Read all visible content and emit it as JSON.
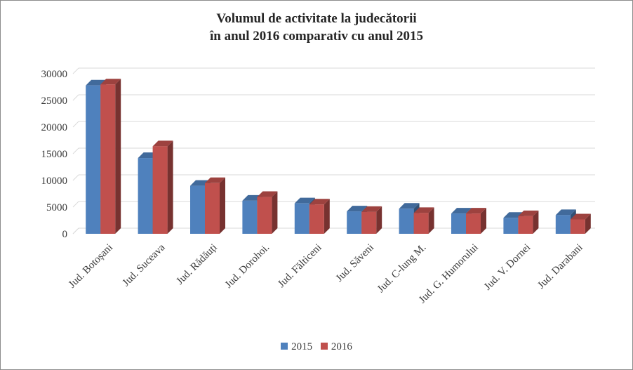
{
  "chart_data": {
    "type": "bar",
    "title_line1": "Volumul  de activitate la judecătorii",
    "title_line2": "în anul 2016 comparativ cu anul 2015",
    "categories": [
      "Jud. Botoșani",
      "Jud. Suceava",
      "Jud. Rădăuți",
      "Jud. Dorohoi.",
      "Jud. Fălticeni",
      "Jud. Săveni",
      "Jud. C-lung M.",
      "Jud. G. Humorului",
      "Jud. V. Dornei",
      "Jud. Darabani"
    ],
    "series": [
      {
        "name": "2015",
        "color": "#4f81bd",
        "values": [
          27800,
          14200,
          9000,
          6200,
          5700,
          4200,
          4700,
          3800,
          3000,
          3500
        ]
      },
      {
        "name": "2016",
        "color": "#c0504d",
        "values": [
          28000,
          16400,
          9500,
          6900,
          5500,
          4100,
          3900,
          3800,
          3300,
          2700
        ]
      }
    ],
    "ylim": [
      0,
      30000
    ],
    "yticks": [
      "0",
      "5000",
      "10000",
      "15000",
      "20000",
      "25000",
      "30000"
    ],
    "grid": true,
    "legend": "bottom",
    "style": "3d-clustered-column"
  }
}
